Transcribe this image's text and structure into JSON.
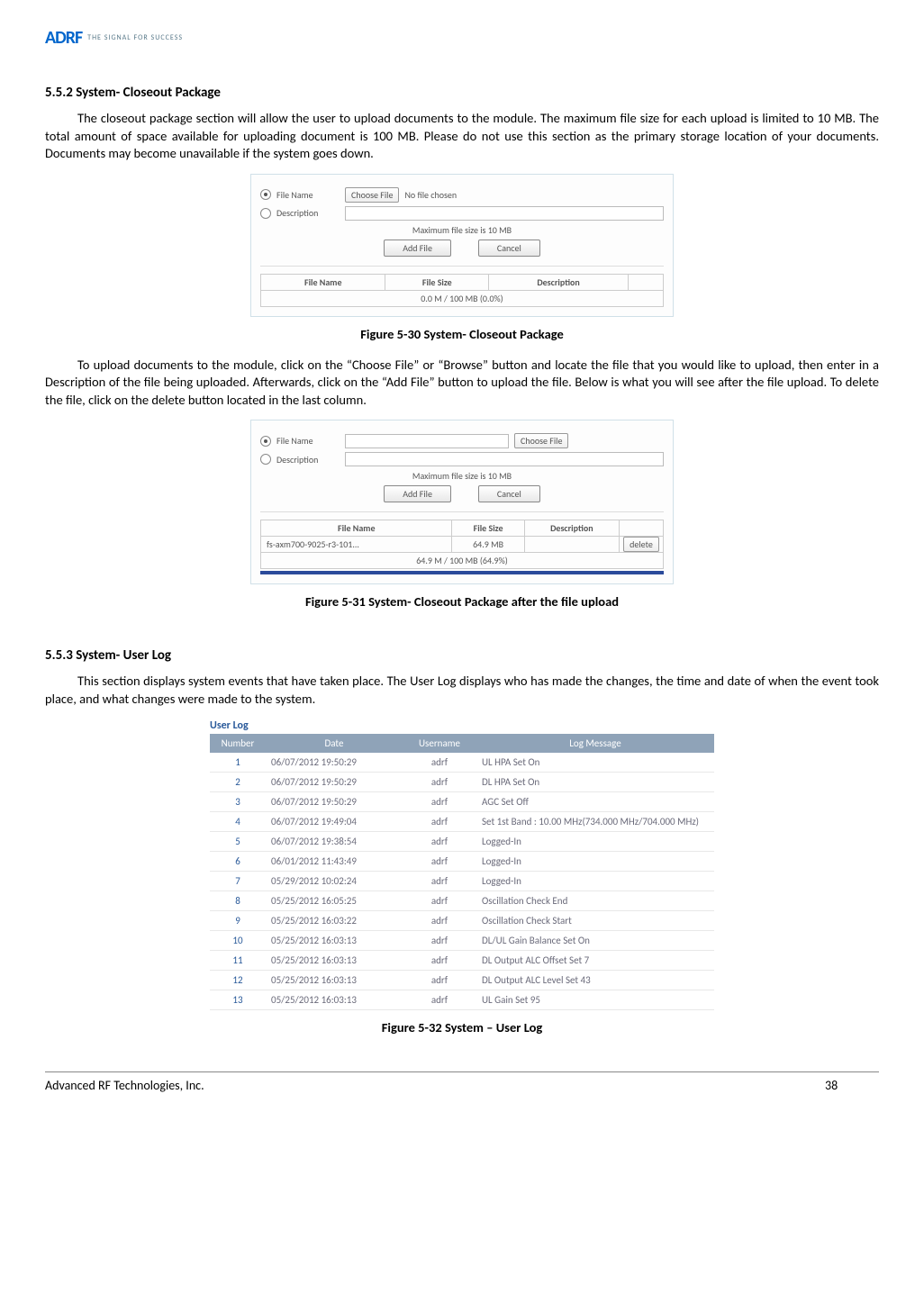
{
  "logo": {
    "brand": "ADRF",
    "tagline": "THE SIGNAL FOR SUCCESS"
  },
  "sec1": {
    "heading": "5.5.2   System- Closeout Package",
    "para1": "The closeout package section will allow the user to upload documents to the module.  The maximum file size for each upload is limited to 10 MB.  The total amount of space available for uploading document is 100 MB.  Please do not use this section as the primary storage location of your documents.  Documents may become unavailable if the system goes down."
  },
  "fig30": {
    "caption": "Figure 5-30   System- Closeout Package",
    "fileNameLabel": "File Name",
    "descLabel": "Description",
    "chooseFile": "Choose File",
    "noFile": "No file chosen",
    "maxNote": "Maximum file size is 10 MB",
    "addFile": "Add File",
    "cancel": "Cancel",
    "col1": "File Name",
    "col2": "File Size",
    "col3": "Description",
    "footerRow": "0.0 M / 100 MB (0.0%)"
  },
  "sec1b": {
    "para2": "To upload documents to the module, click on the “Choose File” or “Browse” button and locate the file that you would like to upload, then enter in a Description of the file being uploaded.  Afterwards, click on the “Add File” button to upload the file.  Below is what you will see after the file upload.  To delete the file, click on the delete button located in the last column."
  },
  "fig31": {
    "caption": "Figure 5-31   System- Closeout Package after the file upload",
    "fileNameLabel": "File Name",
    "descLabel": "Description",
    "chooseFile": "Choose File",
    "maxNote": "Maximum file size is 10 MB",
    "addFile": "Add File",
    "cancel": "Cancel",
    "col1": "File Name",
    "col2": "File Size",
    "col3": "Description",
    "row_fn": "fs-axm700-9025-r3-101...",
    "row_fs": "64.9 MB",
    "row_desc": "",
    "row_del": "delete",
    "footerRow": "64.9 M / 100 MB (64.9%)"
  },
  "sec2": {
    "heading": "5.5.3   System- User Log",
    "para1": "This section displays system events that have taken place.  The User Log displays who has made the changes, the time and date of when the event took place, and what changes were made to the system."
  },
  "userlog": {
    "title": "User Log",
    "headers": {
      "c1": "Number",
      "c2": "Date",
      "c3": "Username",
      "c4": "Log Message"
    },
    "rows": [
      {
        "n": "1",
        "d": "06/07/2012 19:50:29",
        "u": "adrf",
        "m": "UL HPA Set On"
      },
      {
        "n": "2",
        "d": "06/07/2012 19:50:29",
        "u": "adrf",
        "m": "DL HPA Set On"
      },
      {
        "n": "3",
        "d": "06/07/2012 19:50:29",
        "u": "adrf",
        "m": "AGC Set Off"
      },
      {
        "n": "4",
        "d": "06/07/2012 19:49:04",
        "u": "adrf",
        "m": "Set 1st Band : 10.00 MHz(734.000 MHz/704.000 MHz)"
      },
      {
        "n": "5",
        "d": "06/07/2012 19:38:54",
        "u": "adrf",
        "m": "Logged-In"
      },
      {
        "n": "6",
        "d": "06/01/2012 11:43:49",
        "u": "adrf",
        "m": "Logged-In"
      },
      {
        "n": "7",
        "d": "05/29/2012 10:02:24",
        "u": "adrf",
        "m": "Logged-In"
      },
      {
        "n": "8",
        "d": "05/25/2012 16:05:25",
        "u": "adrf",
        "m": "Oscillation Check End"
      },
      {
        "n": "9",
        "d": "05/25/2012 16:03:22",
        "u": "adrf",
        "m": "Oscillation Check Start"
      },
      {
        "n": "10",
        "d": "05/25/2012 16:03:13",
        "u": "adrf",
        "m": "DL/UL Gain Balance Set On"
      },
      {
        "n": "11",
        "d": "05/25/2012 16:03:13",
        "u": "adrf",
        "m": "DL Output ALC Offset Set 7"
      },
      {
        "n": "12",
        "d": "05/25/2012 16:03:13",
        "u": "adrf",
        "m": "DL Output ALC Level Set 43"
      },
      {
        "n": "13",
        "d": "05/25/2012 16:03:13",
        "u": "adrf",
        "m": "UL Gain Set 95"
      }
    ]
  },
  "fig32": {
    "caption": "Figure 5-32   System – User Log"
  },
  "footer": {
    "company": "Advanced RF Technologies, Inc.",
    "page": "38"
  }
}
